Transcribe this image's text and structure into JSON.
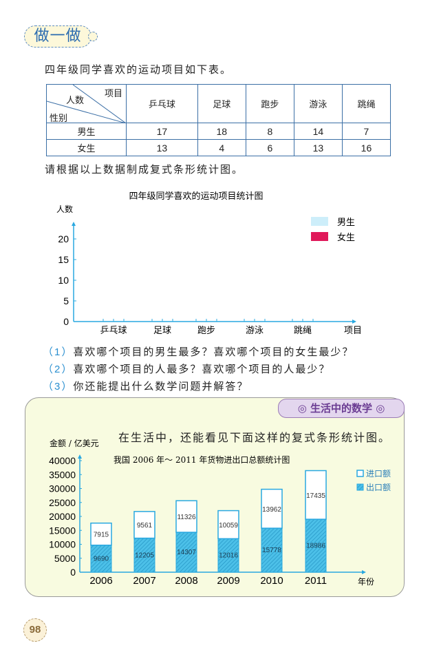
{
  "section_badge": "做一做",
  "intro": "四年级同学喜欢的运动项目如下表。",
  "table": {
    "corner": {
      "top": "项目",
      "middle": "人数",
      "bottom": "性别"
    },
    "columns": [
      "乒乓球",
      "足球",
      "跑步",
      "游泳",
      "跳绳"
    ],
    "rows": [
      {
        "label": "男生",
        "values": [
          "17",
          "18",
          "8",
          "14",
          "7"
        ]
      },
      {
        "label": "女生",
        "values": [
          "13",
          "4",
          "6",
          "13",
          "16"
        ]
      }
    ]
  },
  "instruction": "请根据以上数据制成复式条形统计图。",
  "questions": [
    {
      "num": "（1）",
      "text": "喜欢哪个项目的男生最多？喜欢哪个项目的女生最少？"
    },
    {
      "num": "（2）",
      "text": "喜欢哪个项目的人最多？喜欢哪个项目的人最少？"
    },
    {
      "num": "（3）",
      "text": "你还能提出什么数学问题并解答？"
    }
  ],
  "life_math": {
    "tag": "◎ 生活中的数学 ◎",
    "sentence": "在生活中，还能看见下面这样的复式条形统计图。"
  },
  "page_number": "98",
  "chart_data": [
    {
      "type": "bar",
      "title": "四年级同学喜欢的运动项目统计图",
      "ylabel": "人数",
      "xlabel": "项目",
      "categories": [
        "乒乓球",
        "足球",
        "跑步",
        "游泳",
        "跳绳"
      ],
      "yticks": [
        "0",
        "5",
        "10",
        "15",
        "20"
      ],
      "ylim": [
        0,
        20
      ],
      "legend": [
        {
          "name": "男生",
          "color": "#cdeefa"
        },
        {
          "name": "女生",
          "color": "#e0195a"
        }
      ],
      "legend_position": "top-right",
      "series": [],
      "note": ""
    },
    {
      "type": "bar",
      "stacked": true,
      "title": "我国 2006 年～ 2011 年货物进出口总额统计图",
      "ylabel": "金额 / 亿美元",
      "xlabel": "年份",
      "categories": [
        "2006",
        "2007",
        "2008",
        "2009",
        "2010",
        "2011"
      ],
      "yticks": [
        "0",
        "5000",
        "10000",
        "15000",
        "20000",
        "25000",
        "30000",
        "35000",
        "40000"
      ],
      "ylim": [
        0,
        40000
      ],
      "legend_position": "top-right",
      "series": [
        {
          "name": "出口额",
          "color": "#4cc0e8",
          "values": [
            9690,
            12205,
            14307,
            12016,
            15778,
            18986
          ]
        },
        {
          "name": "进口额",
          "color": "#ffffff",
          "values": [
            7915,
            9561,
            11326,
            10059,
            13962,
            17435
          ]
        }
      ]
    }
  ],
  "colors": {
    "axis": "#29a8e0",
    "table_border": "#3a6ea5",
    "panel_bg": "#f8fbe0",
    "tag_bg": "#e3d6ee"
  }
}
